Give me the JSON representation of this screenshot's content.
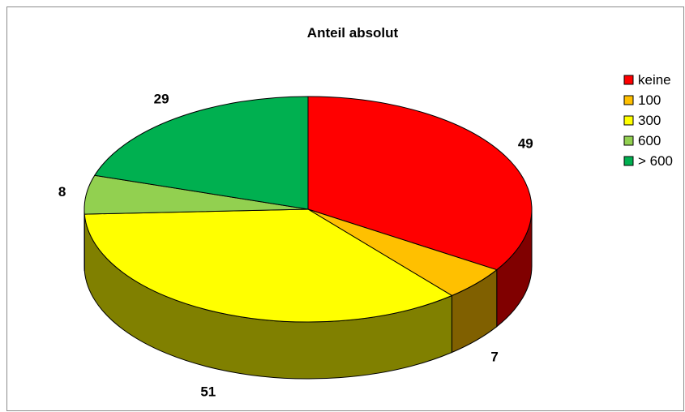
{
  "chart_data": {
    "type": "pie",
    "style": "3d",
    "title": "Anteil absolut",
    "categories": [
      "keine",
      "100",
      "300",
      "600",
      "> 600"
    ],
    "values": [
      49,
      7,
      51,
      8,
      29
    ],
    "colors": [
      "#ff0000",
      "#ffc000",
      "#ffff00",
      "#92d050",
      "#00b050"
    ],
    "side_colors": [
      "#800000",
      "#806000",
      "#808000",
      "#4a6828",
      "#005828"
    ],
    "legend_position": "right"
  }
}
